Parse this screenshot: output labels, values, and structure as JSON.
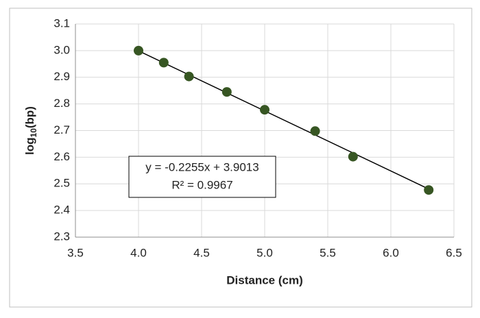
{
  "chart_data": {
    "type": "scatter",
    "xlabel": "Distance (cm)",
    "ylabel": {
      "base": "log",
      "subscript": "10",
      "suffix": "(bp)"
    },
    "x": [
      4.0,
      4.2,
      4.4,
      4.7,
      5.0,
      5.4,
      5.7,
      6.3
    ],
    "series": [
      {
        "color": "#375623",
        "values": [
          3.0,
          2.955,
          2.903,
          2.845,
          2.778,
          2.698,
          2.602,
          2.477
        ]
      }
    ],
    "xlim": [
      3.5,
      6.5
    ],
    "xticks": [
      3.5,
      {
        "value": 4,
        "label": "4.0"
      },
      4.5,
      {
        "value": 5,
        "label": "5.0"
      },
      5.5,
      {
        "value": 6,
        "label": "6.0"
      },
      6.5
    ],
    "ylim": [
      2.3,
      3.1
    ],
    "yticks": [
      2.3,
      2.4,
      2.5,
      2.6,
      2.7,
      2.8,
      2.9,
      {
        "value": 3,
        "label": "3.0"
      },
      3.1
    ],
    "grid": true,
    "trendline": {
      "slope": -0.2255,
      "intercept": 3.9013,
      "x": [
        4.0,
        6.3
      ],
      "color": "#000000",
      "equation": "y = -0.2255x + 3.9013",
      "r2": "R² = 0.9967"
    }
  }
}
